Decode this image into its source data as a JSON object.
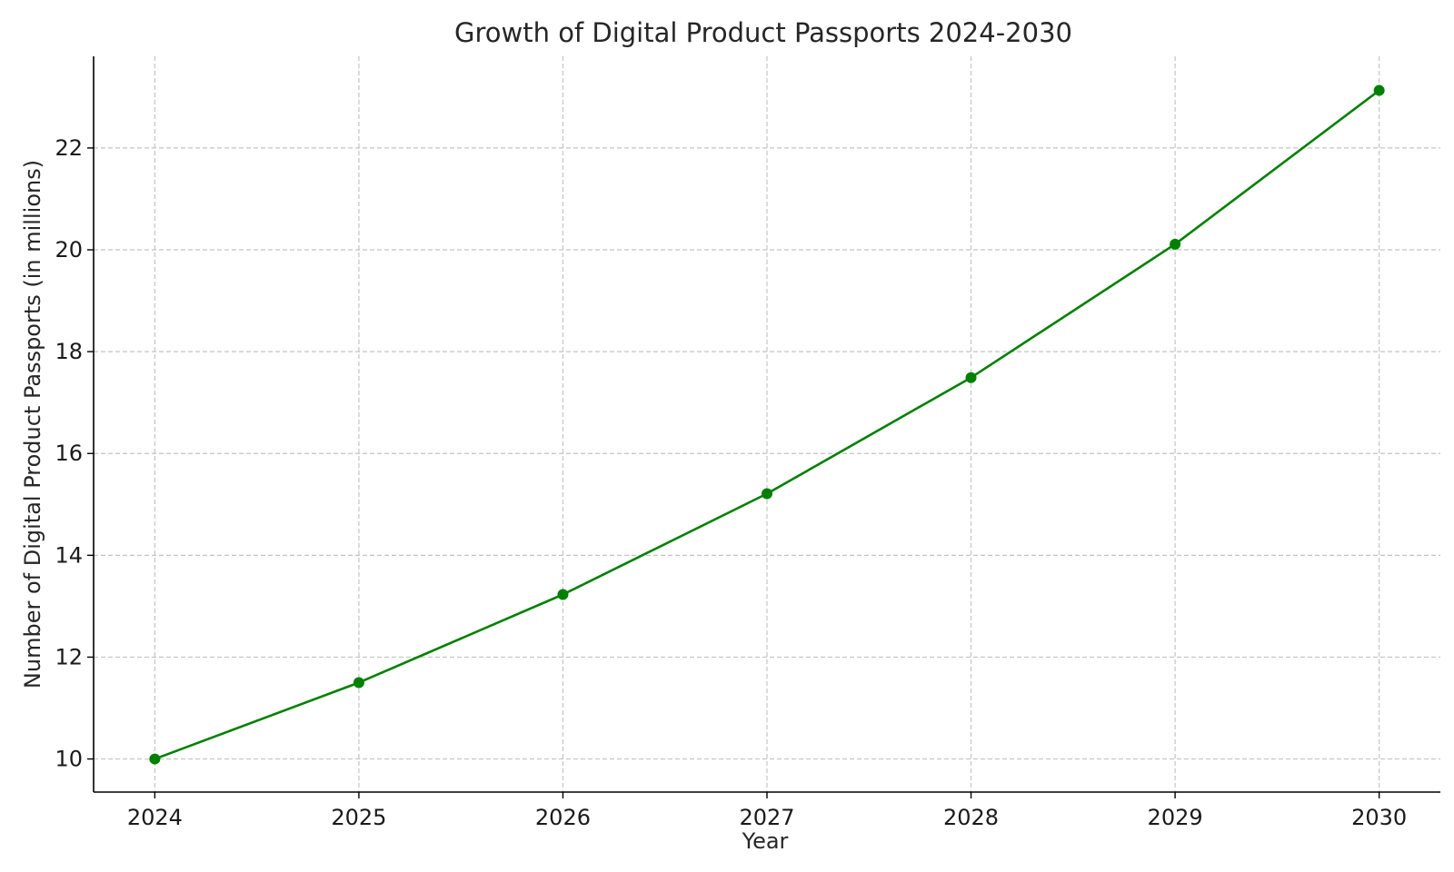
{
  "chart_data": {
    "type": "line",
    "title": "Growth of Digital Product Passports 2024-2030",
    "xlabel": "Year",
    "ylabel": "Number of Digital Product Passports (in millions)",
    "x": [
      2024,
      2025,
      2026,
      2027,
      2028,
      2029,
      2030
    ],
    "x_tick_labels": [
      "2024",
      "2025",
      "2026",
      "2027",
      "2028",
      "2029",
      "2030"
    ],
    "y_ticks": [
      10,
      12,
      14,
      16,
      18,
      20,
      22
    ],
    "y_tick_labels": [
      "10",
      "12",
      "14",
      "16",
      "18",
      "20",
      "22"
    ],
    "xlim": [
      2023.7,
      2030.3
    ],
    "ylim": [
      9.35,
      23.8
    ],
    "grid": true,
    "legend": false,
    "series": [
      {
        "values": [
          10.0,
          11.5,
          13.23,
          15.21,
          17.49,
          20.11,
          23.13
        ],
        "color": "#008000",
        "marker": "circle"
      }
    ]
  }
}
